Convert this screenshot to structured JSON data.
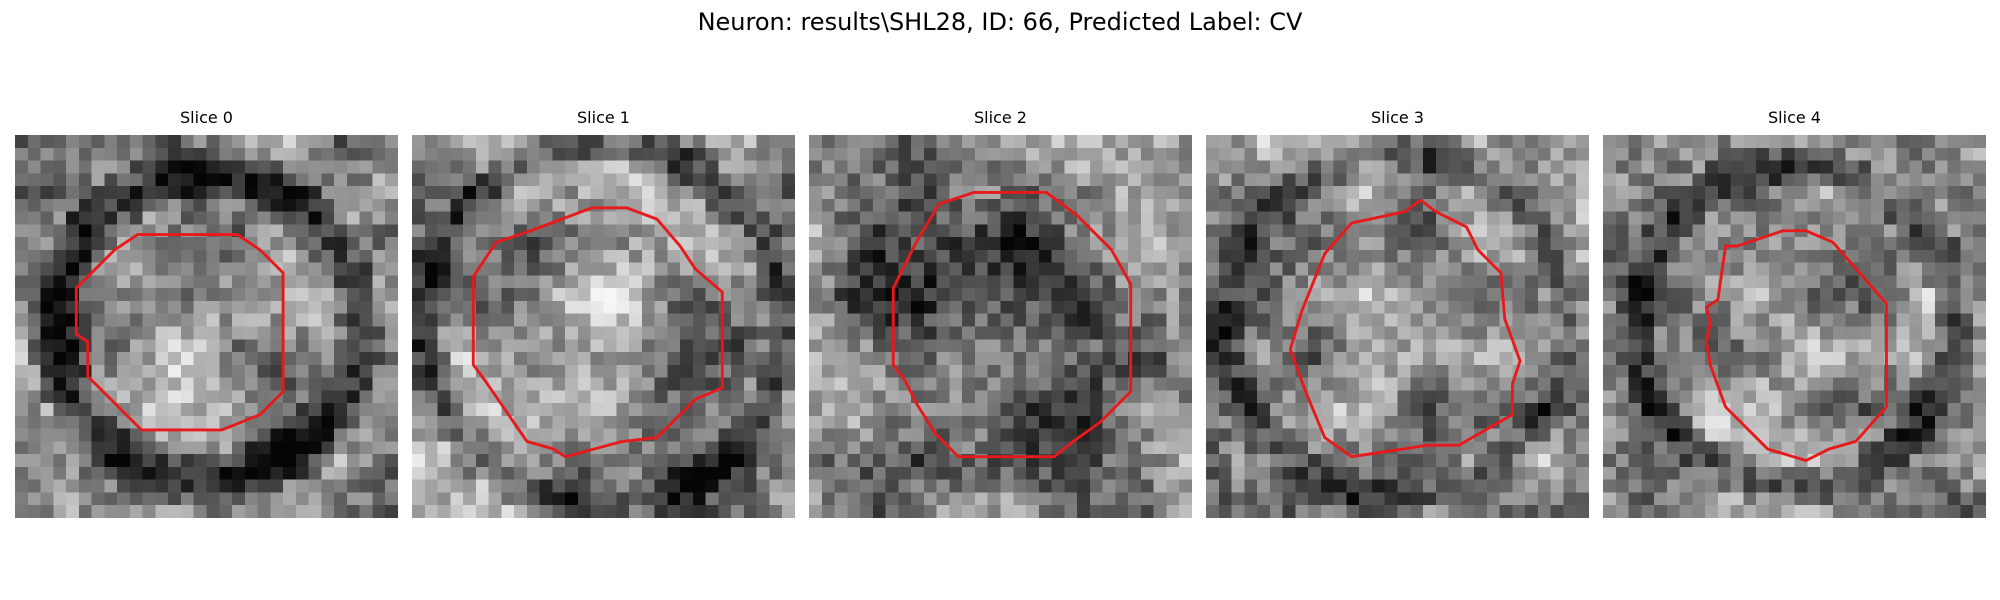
{
  "figure": {
    "title": "Neuron: results\\SHL28, ID: 66, Predicted Label: CV",
    "panels": [
      {
        "title": "Slice 0",
        "seed": 11,
        "dark_ring": {
          "inner": 0.33,
          "outer": 0.46,
          "strength": 0.45
        },
        "center_light": 0.22,
        "contour": [
          [
            0.32,
            0.26
          ],
          [
            0.58,
            0.26
          ],
          [
            0.64,
            0.3
          ],
          [
            0.7,
            0.36
          ],
          [
            0.7,
            0.48
          ],
          [
            0.7,
            0.67
          ],
          [
            0.64,
            0.73
          ],
          [
            0.54,
            0.77
          ],
          [
            0.33,
            0.77
          ],
          [
            0.19,
            0.63
          ],
          [
            0.19,
            0.54
          ],
          [
            0.16,
            0.52
          ],
          [
            0.16,
            0.4
          ],
          [
            0.24,
            0.32
          ],
          [
            0.26,
            0.3
          ]
        ]
      },
      {
        "title": "Slice 1",
        "seed": 29,
        "dark_ring": {
          "inner": 0.42,
          "outer": 0.52,
          "strength": 0.35
        },
        "center_light": 0.15,
        "contour": [
          [
            0.31,
            0.25
          ],
          [
            0.47,
            0.19
          ],
          [
            0.56,
            0.19
          ],
          [
            0.64,
            0.22
          ],
          [
            0.7,
            0.29
          ],
          [
            0.74,
            0.35
          ],
          [
            0.81,
            0.41
          ],
          [
            0.81,
            0.66
          ],
          [
            0.74,
            0.69
          ],
          [
            0.64,
            0.79
          ],
          [
            0.55,
            0.8
          ],
          [
            0.4,
            0.84
          ],
          [
            0.37,
            0.82
          ],
          [
            0.3,
            0.8
          ],
          [
            0.19,
            0.64
          ],
          [
            0.16,
            0.6
          ],
          [
            0.16,
            0.37
          ],
          [
            0.22,
            0.28
          ]
        ]
      },
      {
        "title": "Slice 2",
        "seed": 47,
        "dark_ring": {
          "inner": 0.0,
          "outer": 0.44,
          "strength": 0.25
        },
        "center_light": -0.15,
        "contour": [
          [
            0.34,
            0.18
          ],
          [
            0.43,
            0.15
          ],
          [
            0.62,
            0.15
          ],
          [
            0.7,
            0.21
          ],
          [
            0.79,
            0.3
          ],
          [
            0.84,
            0.39
          ],
          [
            0.84,
            0.67
          ],
          [
            0.76,
            0.75
          ],
          [
            0.69,
            0.8
          ],
          [
            0.64,
            0.84
          ],
          [
            0.39,
            0.84
          ],
          [
            0.33,
            0.78
          ],
          [
            0.28,
            0.7
          ],
          [
            0.25,
            0.64
          ],
          [
            0.22,
            0.6
          ],
          [
            0.22,
            0.4
          ],
          [
            0.28,
            0.28
          ]
        ]
      },
      {
        "title": "Slice 3",
        "seed": 63,
        "dark_ring": {
          "inner": 0.4,
          "outer": 0.5,
          "strength": 0.25
        },
        "center_light": 0.05,
        "contour": [
          [
            0.31,
            0.31
          ],
          [
            0.38,
            0.23
          ],
          [
            0.52,
            0.2
          ],
          [
            0.56,
            0.17
          ],
          [
            0.6,
            0.2
          ],
          [
            0.68,
            0.24
          ],
          [
            0.71,
            0.3
          ],
          [
            0.77,
            0.36
          ],
          [
            0.78,
            0.48
          ],
          [
            0.82,
            0.59
          ],
          [
            0.8,
            0.65
          ],
          [
            0.8,
            0.73
          ],
          [
            0.66,
            0.81
          ],
          [
            0.58,
            0.81
          ],
          [
            0.38,
            0.84
          ],
          [
            0.31,
            0.79
          ],
          [
            0.26,
            0.67
          ],
          [
            0.22,
            0.56
          ],
          [
            0.25,
            0.46
          ]
        ]
      },
      {
        "title": "Slice 4",
        "seed": 81,
        "dark_ring": {
          "inner": 0.36,
          "outer": 0.47,
          "strength": 0.35
        },
        "center_light": 0.05,
        "contour": [
          [
            0.32,
            0.29
          ],
          [
            0.35,
            0.29
          ],
          [
            0.47,
            0.25
          ],
          [
            0.53,
            0.25
          ],
          [
            0.6,
            0.28
          ],
          [
            0.74,
            0.44
          ],
          [
            0.74,
            0.71
          ],
          [
            0.66,
            0.8
          ],
          [
            0.59,
            0.82
          ],
          [
            0.53,
            0.85
          ],
          [
            0.43,
            0.82
          ],
          [
            0.32,
            0.71
          ],
          [
            0.28,
            0.6
          ],
          [
            0.27,
            0.54
          ],
          [
            0.28,
            0.49
          ],
          [
            0.27,
            0.45
          ],
          [
            0.3,
            0.43
          ]
        ]
      }
    ],
    "contour_color": "#e8191b"
  }
}
